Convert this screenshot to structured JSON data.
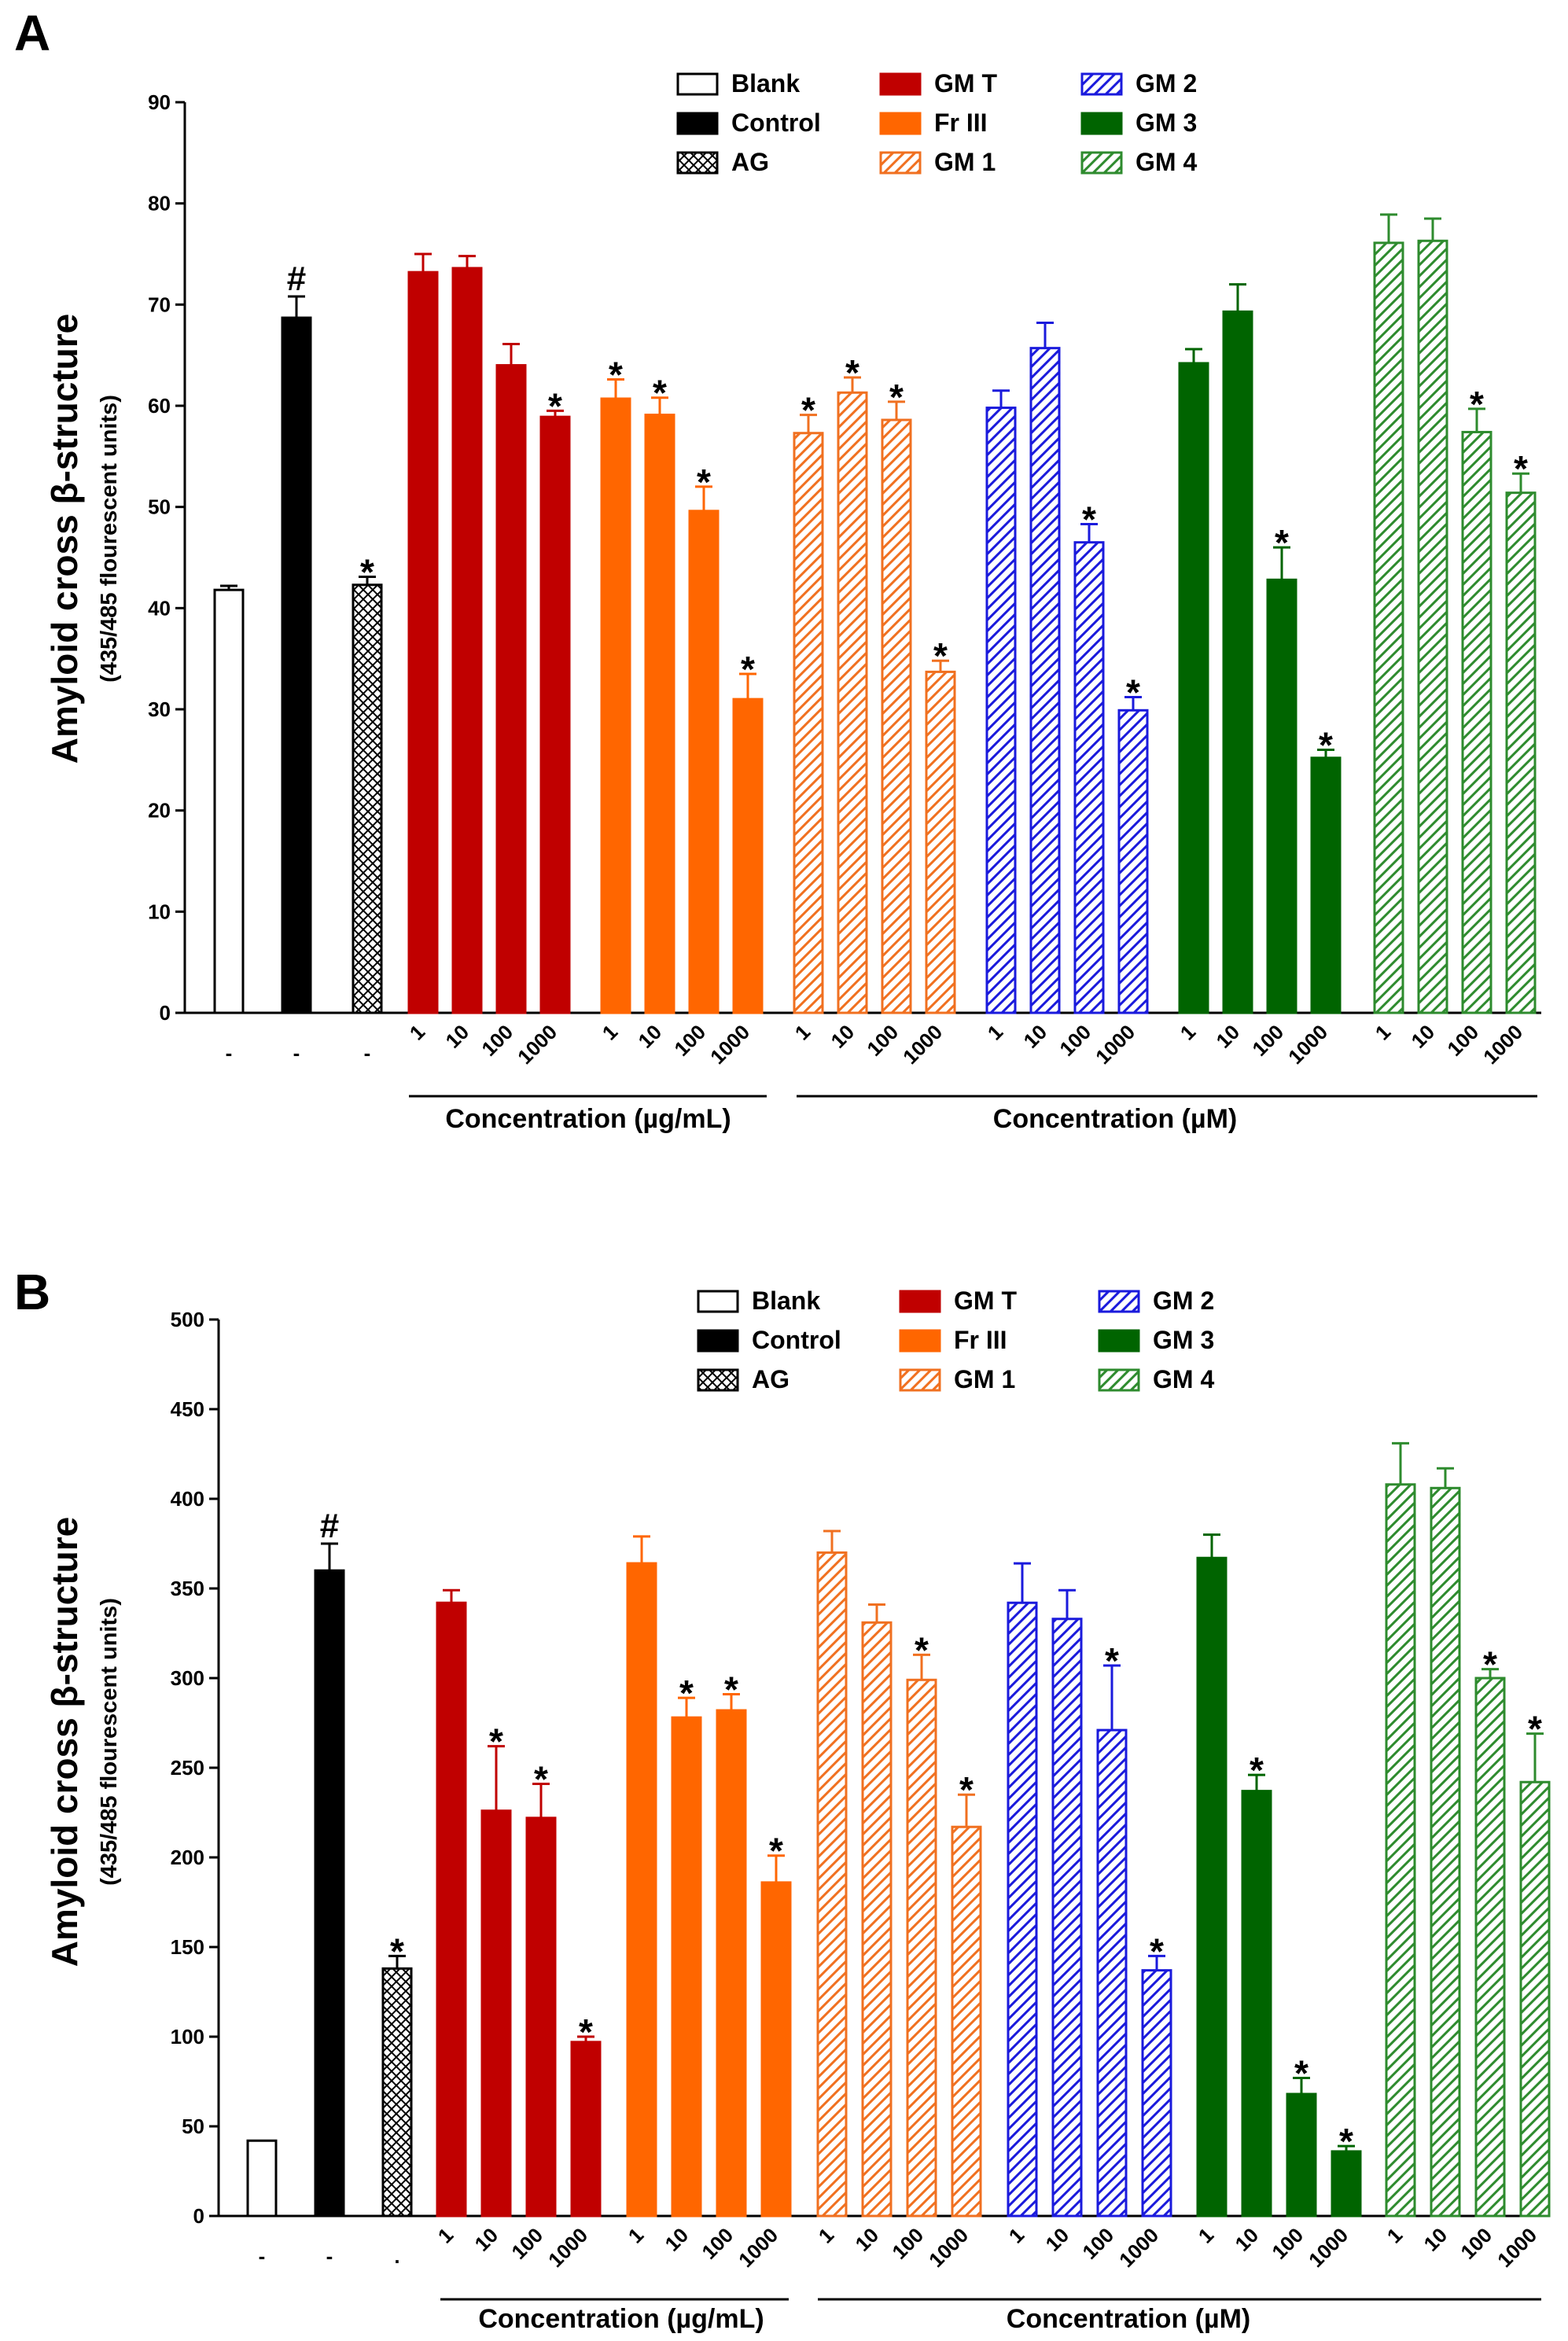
{
  "colors": {
    "Blank": "#ffffff",
    "Control": "#000000",
    "AG": "#000000",
    "GM T": "#c00000",
    "Fr III": "#ff6600",
    "GM 1": "#f07020",
    "GM 2": "#1a1adc",
    "GM 3": "#006400",
    "GM 4": "#2e8b2e"
  },
  "chart_data": [
    {
      "type": "bar",
      "panel": "A",
      "ylabel": "Amyloid cross β-structure",
      "ylabel_sub": "(435/485 flourescent units)",
      "ylim": [
        0,
        90
      ],
      "yticks": [
        0,
        10,
        20,
        30,
        40,
        50,
        60,
        70,
        80,
        90
      ],
      "legend": [
        {
          "label": "Blank",
          "style": "blank"
        },
        {
          "label": "Control",
          "style": "control"
        },
        {
          "label": "AG",
          "style": "crosshatch"
        },
        {
          "label": "GM T",
          "style": "solid",
          "color_key": "GM T"
        },
        {
          "label": "Fr III",
          "style": "solid",
          "color_key": "Fr III"
        },
        {
          "label": "GM 1",
          "style": "hatch",
          "color_key": "GM 1"
        },
        {
          "label": "GM 2",
          "style": "hatch",
          "color_key": "GM 2"
        },
        {
          "label": "GM 3",
          "style": "solid",
          "color_key": "GM 3"
        },
        {
          "label": "GM 4",
          "style": "hatch",
          "color_key": "GM 4"
        }
      ],
      "concentration_label_1": "Concentration (µg/mL)",
      "concentration_label_2": "Concentration (µM)",
      "controls": [
        {
          "name": "Blank",
          "value": 41.8,
          "err": 0.4,
          "mark": "",
          "dash": "-"
        },
        {
          "name": "Control",
          "value": 68.7,
          "err": 2.1,
          "mark": "#",
          "dash": "-"
        },
        {
          "name": "AG",
          "value": 42.3,
          "err": 0.8,
          "mark": "*",
          "dash": "-"
        }
      ],
      "groups": [
        {
          "name": "GM T",
          "style": "solid",
          "doses": [
            "1",
            "10",
            "100",
            "1000"
          ],
          "values": [
            73.2,
            73.6,
            64.0,
            58.9
          ],
          "errors": [
            1.8,
            1.2,
            2.1,
            0.6
          ],
          "marks": [
            "",
            "",
            "",
            "*"
          ]
        },
        {
          "name": "Fr III",
          "style": "solid",
          "doses": [
            "1",
            "10",
            "100",
            "1000"
          ],
          "values": [
            60.7,
            59.1,
            49.6,
            31.0
          ],
          "errors": [
            1.9,
            1.7,
            2.4,
            2.5
          ],
          "marks": [
            "*",
            "*",
            "*",
            "*"
          ]
        },
        {
          "name": "GM 1",
          "style": "hatch",
          "doses": [
            "1",
            "10",
            "100",
            "1000"
          ],
          "values": [
            57.3,
            61.3,
            58.6,
            33.7
          ],
          "errors": [
            1.8,
            1.5,
            1.8,
            1.1
          ],
          "marks": [
            "*",
            "*",
            "*",
            "*"
          ]
        },
        {
          "name": "GM 2",
          "style": "hatch",
          "doses": [
            "1",
            "10",
            "100",
            "1000"
          ],
          "values": [
            59.8,
            65.7,
            46.5,
            29.9
          ],
          "errors": [
            1.7,
            2.5,
            1.8,
            1.3
          ],
          "marks": [
            "",
            "",
            "*",
            "*"
          ]
        },
        {
          "name": "GM 3",
          "style": "solid",
          "doses": [
            "1",
            "10",
            "100",
            "1000"
          ],
          "values": [
            64.2,
            69.3,
            42.8,
            25.2
          ],
          "errors": [
            1.4,
            2.7,
            3.2,
            0.8
          ],
          "marks": [
            "",
            "",
            "*",
            "*"
          ]
        },
        {
          "name": "GM 4",
          "style": "hatch",
          "doses": [
            "1",
            "10",
            "100",
            "1000"
          ],
          "values": [
            76.1,
            76.3,
            57.4,
            51.4
          ],
          "errors": [
            2.8,
            2.2,
            2.3,
            1.9
          ],
          "marks": [
            "",
            "",
            "*",
            "*"
          ]
        }
      ]
    },
    {
      "type": "bar",
      "panel": "B",
      "ylabel": "Amyloid cross β-structure",
      "ylabel_sub": "(435/485 flourescent units)",
      "ylim": [
        0,
        500
      ],
      "yticks": [
        0,
        50,
        100,
        150,
        200,
        250,
        300,
        350,
        400,
        450,
        500
      ],
      "legend": [
        {
          "label": "Blank",
          "style": "blank"
        },
        {
          "label": "Control",
          "style": "control"
        },
        {
          "label": "AG",
          "style": "crosshatch"
        },
        {
          "label": "GM T",
          "style": "solid",
          "color_key": "GM T"
        },
        {
          "label": "Fr III",
          "style": "solid",
          "color_key": "Fr III"
        },
        {
          "label": "GM 1",
          "style": "hatch",
          "color_key": "GM 1"
        },
        {
          "label": "GM 2",
          "style": "hatch",
          "color_key": "GM 2"
        },
        {
          "label": "GM 3",
          "style": "solid",
          "color_key": "GM 3"
        },
        {
          "label": "GM 4",
          "style": "hatch",
          "color_key": "GM 4"
        }
      ],
      "concentration_label_1": "Concentration (µg/mL)",
      "concentration_label_2": "Concentration (µM)",
      "controls": [
        {
          "name": "Blank",
          "value": 42,
          "err": 0,
          "mark": "",
          "dash": "-"
        },
        {
          "name": "Control",
          "value": 360,
          "err": 15,
          "mark": "#",
          "dash": "-"
        },
        {
          "name": "AG",
          "value": 138,
          "err": 7,
          "mark": "*",
          "dash": "."
        }
      ],
      "groups": [
        {
          "name": "GM T",
          "style": "solid",
          "doses": [
            "1",
            "10",
            "100",
            "1000"
          ],
          "values": [
            342,
            226,
            222,
            97
          ],
          "errors": [
            7,
            36,
            19,
            3
          ],
          "marks": [
            "",
            "*",
            "*",
            "*"
          ]
        },
        {
          "name": "Fr III",
          "style": "solid",
          "doses": [
            "1",
            "10",
            "100",
            "1000"
          ],
          "values": [
            364,
            278,
            282,
            186
          ],
          "errors": [
            15,
            11,
            9,
            15
          ],
          "marks": [
            "",
            "*",
            "*",
            "*"
          ]
        },
        {
          "name": "GM 1",
          "style": "hatch",
          "doses": [
            "1",
            "10",
            "100",
            "1000"
          ],
          "values": [
            370,
            331,
            299,
            217
          ],
          "errors": [
            12,
            10,
            14,
            18
          ],
          "marks": [
            "",
            "",
            "*",
            "*"
          ]
        },
        {
          "name": "GM 2",
          "style": "hatch",
          "doses": [
            "1",
            "10",
            "100",
            "1000"
          ],
          "values": [
            342,
            333,
            271,
            137
          ],
          "errors": [
            22,
            16,
            36,
            8
          ],
          "marks": [
            "",
            "",
            "*",
            "*"
          ]
        },
        {
          "name": "GM 3",
          "style": "solid",
          "doses": [
            "1",
            "10",
            "100",
            "1000"
          ],
          "values": [
            367,
            237,
            68,
            36
          ],
          "errors": [
            13,
            9,
            9,
            3
          ],
          "marks": [
            "",
            "*",
            "*",
            "*"
          ]
        },
        {
          "name": "GM 4",
          "style": "hatch",
          "doses": [
            "1",
            "10",
            "100",
            "1000"
          ],
          "values": [
            408,
            406,
            300,
            242
          ],
          "errors": [
            23,
            11,
            5,
            27
          ],
          "marks": [
            "",
            "",
            "*",
            "*"
          ]
        }
      ]
    }
  ]
}
